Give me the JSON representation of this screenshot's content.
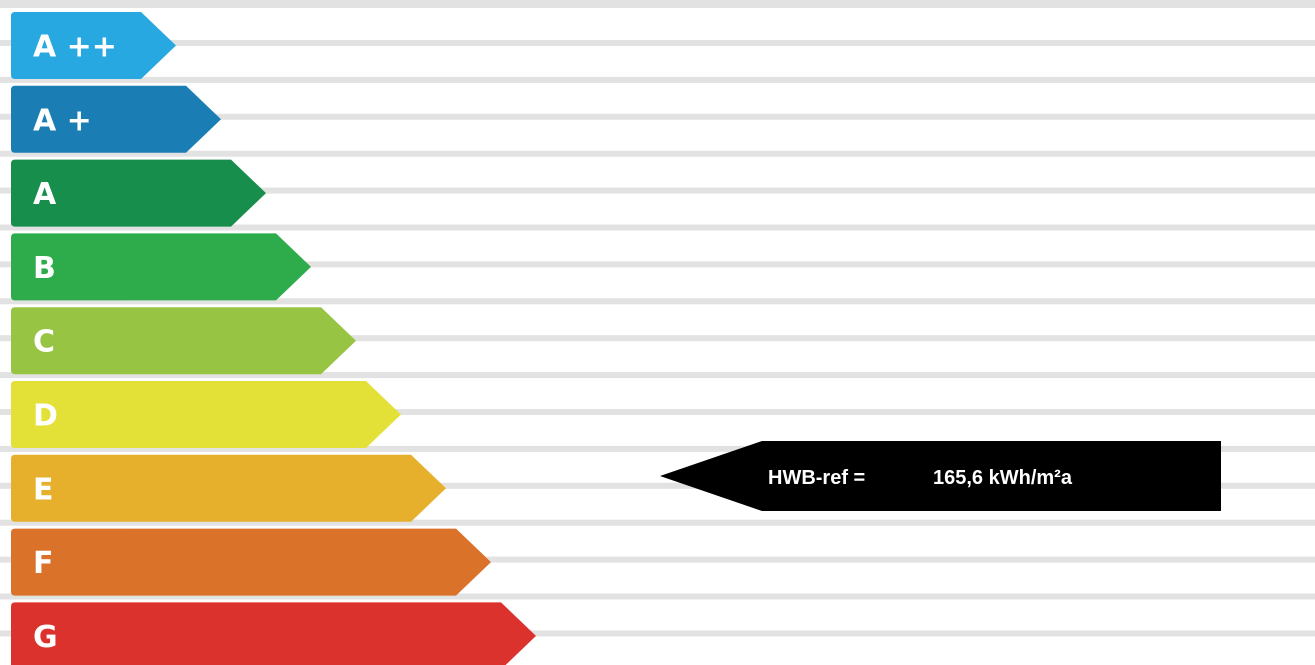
{
  "energy_classes": [
    {
      "label": "A ++",
      "color": "#27a8e0"
    },
    {
      "label": "A +",
      "color": "#1a7db3"
    },
    {
      "label": "A",
      "color": "#178e4c"
    },
    {
      "label": "B",
      "color": "#2eac4b"
    },
    {
      "label": "C",
      "color": "#98c444"
    },
    {
      "label": "D",
      "color": "#e3e137"
    },
    {
      "label": "E",
      "color": "#e6b02c"
    },
    {
      "label": "F",
      "color": "#da722a"
    },
    {
      "label": "G",
      "color": "#dc322d"
    }
  ],
  "indicator": {
    "label": "HWB-ref =",
    "value": "165,6 kWh/m²a",
    "class": "E",
    "color": "#000000"
  },
  "stripe_color": "#e2e2e2"
}
